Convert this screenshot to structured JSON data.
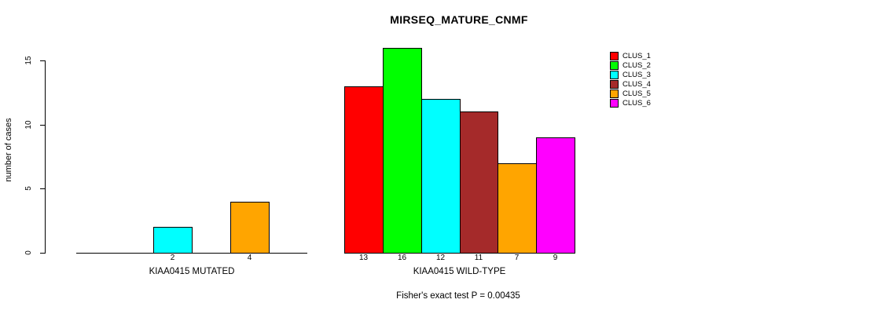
{
  "title": "MIRSEQ_MATURE_CNMF",
  "chart_data": {
    "type": "bar",
    "title": "MIRSEQ_MATURE_CNMF",
    "xlabel": "",
    "ylabel": "number of cases",
    "ylim": [
      0,
      16
    ],
    "yticks": [
      0,
      5,
      10,
      15
    ],
    "grid": false,
    "legend_position": "right",
    "series_names": [
      "CLUS_1",
      "CLUS_2",
      "CLUS_3",
      "CLUS_4",
      "CLUS_5",
      "CLUS_6"
    ],
    "series_colors": [
      "#ff0000",
      "#00ff00",
      "#00ffff",
      "#a52a2a",
      "#ffa500",
      "#ff00ff"
    ],
    "groups": [
      {
        "label": "KIAA0415 MUTATED",
        "values": [
          0,
          0,
          2,
          0,
          4,
          0
        ],
        "bar_labels": [
          "",
          "",
          "2",
          "",
          "4",
          ""
        ]
      },
      {
        "label": "KIAA0415 WILD-TYPE",
        "values": [
          13,
          16,
          12,
          11,
          7,
          9
        ],
        "bar_labels": [
          "13",
          "16",
          "12",
          "11",
          "7",
          "9"
        ]
      }
    ],
    "annotation": "Fisher's exact test P = 0.00435"
  }
}
